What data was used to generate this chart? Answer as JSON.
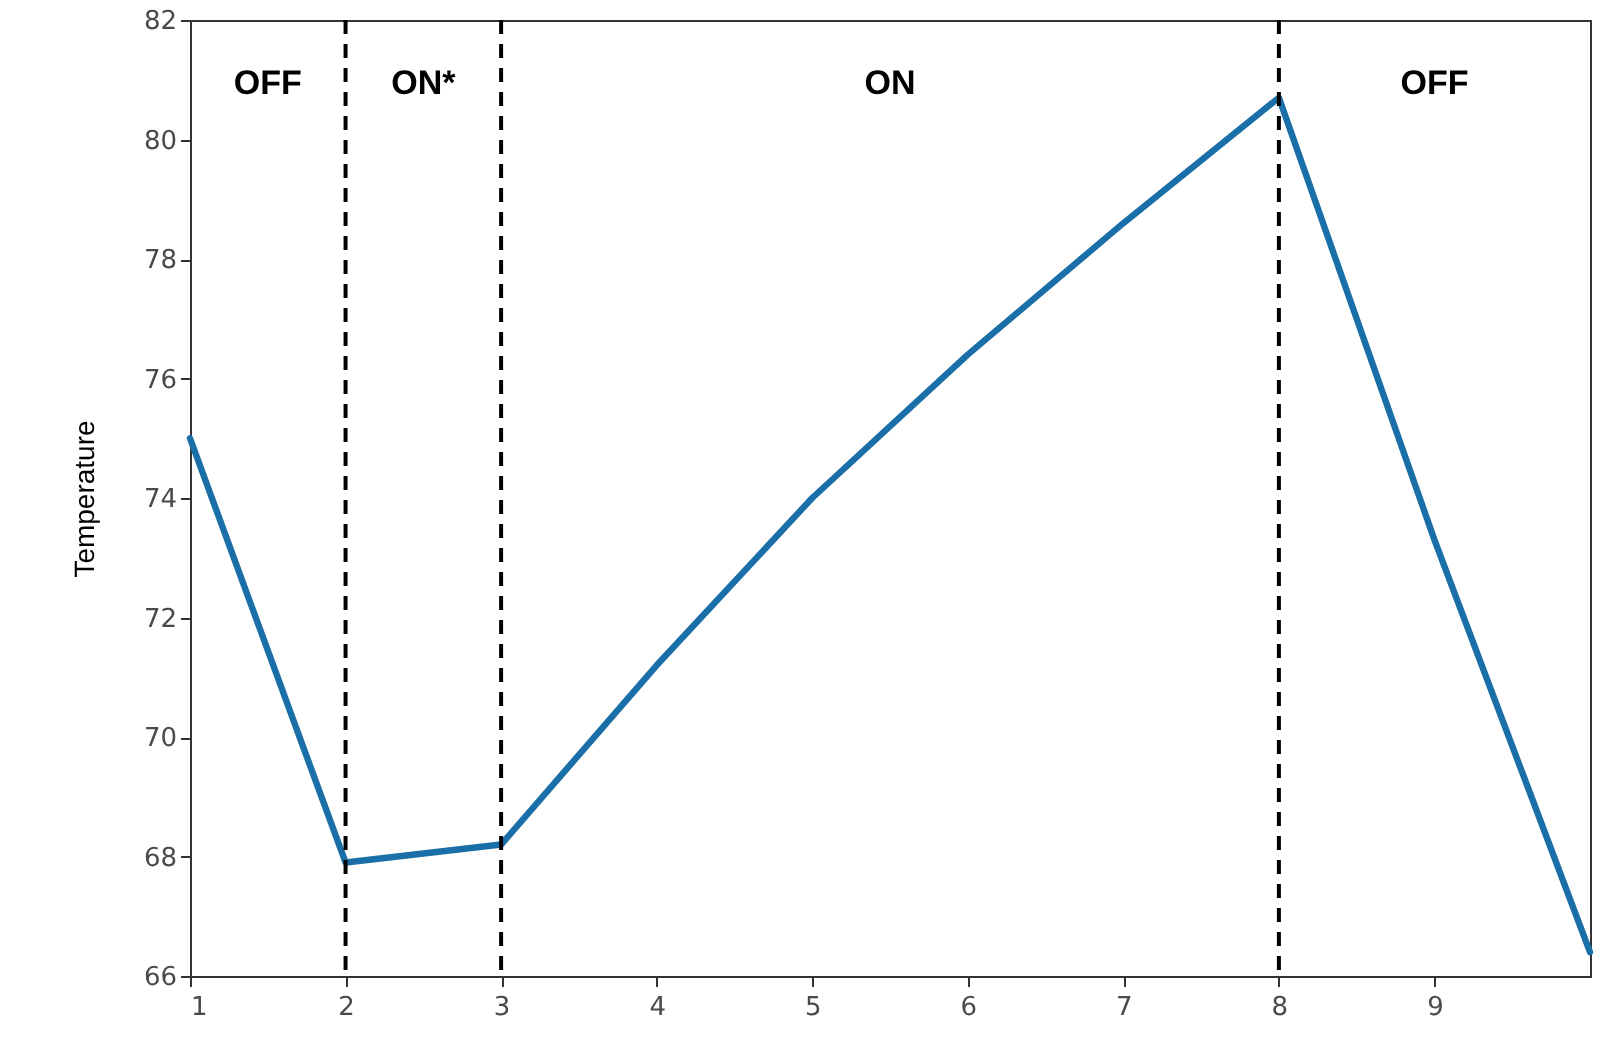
{
  "chart_data": {
    "type": "line",
    "ylabel": "Temperature",
    "x": [
      1,
      2,
      3,
      4,
      5,
      6,
      7,
      8,
      9,
      10
    ],
    "series": [
      {
        "color": "#1b6fa8",
        "values": [
          75,
          67.9,
          68.2,
          71.2,
          74.0,
          76.4,
          78.6,
          80.7,
          73.3,
          66.4
        ]
      }
    ],
    "xlim": [
      1,
      10
    ],
    "xticks": [
      1,
      2,
      3,
      4,
      5,
      6,
      7,
      8,
      9
    ],
    "ylim": [
      66,
      82
    ],
    "yticks": [
      66,
      68,
      70,
      72,
      74,
      76,
      78,
      80,
      82
    ],
    "grid": false,
    "marker": "none",
    "line_style": "solid",
    "ref_lines": [
      {
        "axis": "x",
        "value": 2,
        "color": "#000000",
        "line_style": "dashed"
      },
      {
        "axis": "x",
        "value": 3,
        "color": "#000000",
        "line_style": "dashed"
      },
      {
        "axis": "x",
        "value": 8,
        "color": "#000000",
        "line_style": "dashed"
      }
    ],
    "annotations": [
      "OFF",
      "ON*",
      "ON",
      "OFF"
    ]
  }
}
